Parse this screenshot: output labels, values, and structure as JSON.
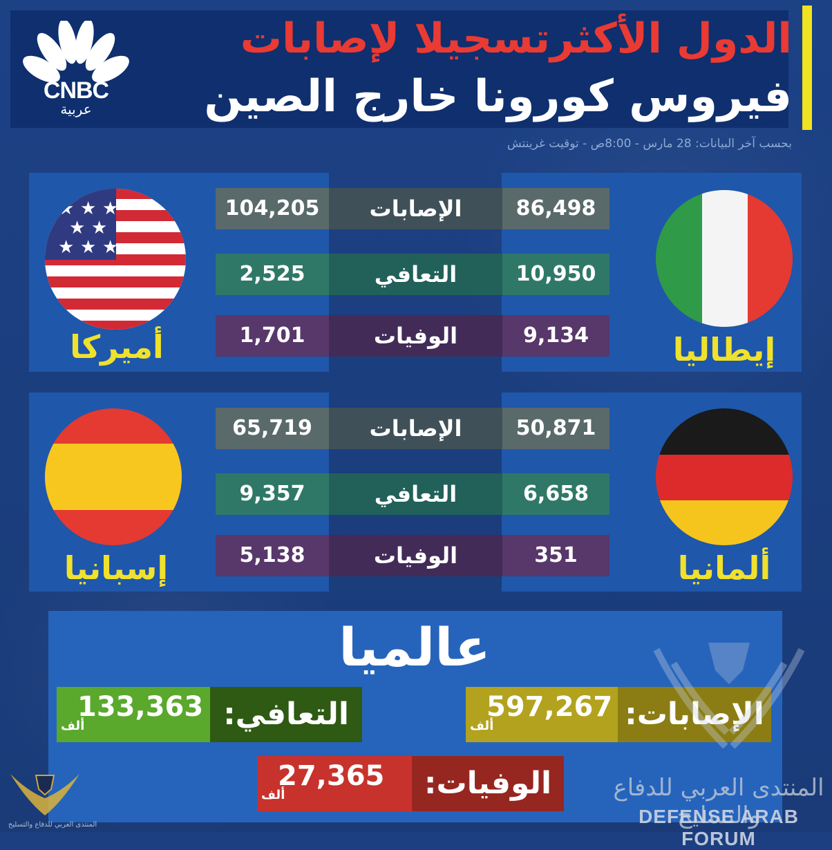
{
  "header": {
    "title_line1": "الدول الأكثرتسجيلا لإصابات",
    "title_line2": "فيروس كورونا خارج الصين",
    "subtitle": "بحسب آخر البيانات: 28 مارس - 8:00ص - توقيت غرينتش"
  },
  "logo": {
    "text": "CNBC",
    "sub": "عربية"
  },
  "labels": {
    "cases": "الإصابات",
    "recovered": "التعافي",
    "deaths": "الوفيات"
  },
  "countries": {
    "usa": {
      "name": "أميركا",
      "cases": "104,205",
      "recovered": "2,525",
      "deaths": "1,701"
    },
    "italy": {
      "name": "إيطاليا",
      "cases": "86,498",
      "recovered": "10,950",
      "deaths": "9,134"
    },
    "spain": {
      "name": "إسبانيا",
      "cases": "65,719",
      "recovered": "9,357",
      "deaths": "5,138"
    },
    "germany": {
      "name": "ألمانيا",
      "cases": "50,871",
      "recovered": "6,658",
      "deaths": "351"
    }
  },
  "world": {
    "title": "عالميا",
    "cases_label": "الإصابات:",
    "cases_value": "597,267",
    "recovered_label": "التعافي:",
    "recovered_value": "133,363",
    "deaths_label": "الوفيات:",
    "deaths_value": "27,365",
    "unit": "ألف"
  },
  "watermark": {
    "arabic": "المنتدى العربي للدفاع والتسليح",
    "english": "DEFENSE ARAB FORUM",
    "small": "المنتدى العربي للدفاع والتسليح"
  },
  "colors": {
    "background": "#1b3f80",
    "title_red": "#e93a34",
    "accent_yellow": "#f1e320",
    "country_label": "#f0e12c",
    "world_cases": "#b3a21e",
    "world_recovered": "#5aa82c",
    "world_deaths": "#c8322c"
  }
}
